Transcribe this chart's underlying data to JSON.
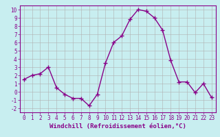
{
  "x": [
    0,
    1,
    2,
    3,
    4,
    5,
    6,
    7,
    8,
    9,
    10,
    11,
    12,
    13,
    14,
    15,
    16,
    17,
    18,
    19,
    20,
    21,
    22,
    23
  ],
  "y": [
    1.5,
    2.0,
    2.2,
    3.0,
    0.5,
    -0.3,
    -0.8,
    -0.8,
    -1.7,
    -0.3,
    3.5,
    6.0,
    6.8,
    8.8,
    10.0,
    9.8,
    9.0,
    7.5,
    3.8,
    1.2,
    1.2,
    -0.1,
    1.0,
    -0.7
  ],
  "line_color": "#880088",
  "marker": "+",
  "marker_size": 4,
  "linewidth": 1.0,
  "xlabel": "Windchill (Refroidissement éolien,°C)",
  "xlabel_fontsize": 6.5,
  "xlim": [
    -0.5,
    23.5
  ],
  "ylim": [
    -2.5,
    10.5
  ],
  "yticks": [
    -2,
    -1,
    0,
    1,
    2,
    3,
    4,
    5,
    6,
    7,
    8,
    9,
    10
  ],
  "xticks": [
    0,
    1,
    2,
    3,
    4,
    5,
    6,
    7,
    8,
    9,
    10,
    11,
    12,
    13,
    14,
    15,
    16,
    17,
    18,
    19,
    20,
    21,
    22,
    23
  ],
  "tick_fontsize": 5.5,
  "background_color": "#c8eef0",
  "grid_color": "#b0b0b0",
  "border_color": "#880088"
}
